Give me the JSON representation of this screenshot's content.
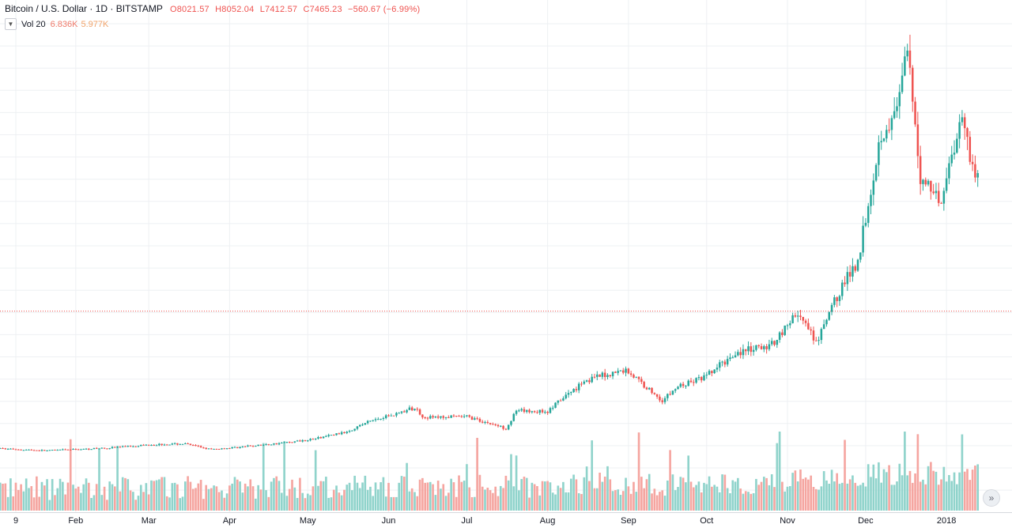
{
  "legend": {
    "symbol": "Bitcoin / U.S. Dollar · 1D · BITSTAMP",
    "open": "O8021.57",
    "high": "H8052.04",
    "low": "L7412.57",
    "close": "C7465.23",
    "change": "−560.67 (−6.99%)"
  },
  "volume_legend": {
    "toggle_icon": "chevron-down-icon",
    "label": "Vol 20",
    "value1": "6.836K",
    "value2": "5.977K"
  },
  "scroll_icon": "double-chevron-right-icon",
  "colors": {
    "up": "#26a69a",
    "down": "#ef5350",
    "vol_up": "#8fd3cb",
    "vol_down": "#f5a5a0",
    "last_price_line": "#ef5350"
  },
  "chart_data": {
    "type": "candlestick",
    "x_range": [
      "2017-01-09",
      "2018-01-14"
    ],
    "ylim": [
      -2000,
      21000
    ],
    "volume_ylim": [
      0,
      100000
    ],
    "last_price": 7465.23,
    "grid": true,
    "x_ticks": [
      {
        "label": "9",
        "date": "2017-01-09"
      },
      {
        "label": "Feb",
        "date": "2017-02-01"
      },
      {
        "label": "Mar",
        "date": "2017-03-01"
      },
      {
        "label": "Apr",
        "date": "2017-04-01"
      },
      {
        "label": "May",
        "date": "2017-05-01"
      },
      {
        "label": "Jun",
        "date": "2017-06-01"
      },
      {
        "label": "Jul",
        "date": "2017-07-01"
      },
      {
        "label": "Aug",
        "date": "2017-08-01"
      },
      {
        "label": "Sep",
        "date": "2017-09-01"
      },
      {
        "label": "Oct",
        "date": "2017-10-01"
      },
      {
        "label": "Nov",
        "date": "2017-11-01"
      },
      {
        "label": "Dec",
        "date": "2017-12-01"
      },
      {
        "label": "2018",
        "date": "2018-01-01"
      }
    ],
    "price_path": [
      {
        "date": "2017-01-03",
        "close": 1000
      },
      {
        "date": "2017-01-20",
        "close": 900
      },
      {
        "date": "2017-02-10",
        "close": 1000
      },
      {
        "date": "2017-03-01",
        "close": 1180
      },
      {
        "date": "2017-03-15",
        "close": 1220
      },
      {
        "date": "2017-03-25",
        "close": 950
      },
      {
        "date": "2017-04-15",
        "close": 1180
      },
      {
        "date": "2017-05-01",
        "close": 1400
      },
      {
        "date": "2017-05-15",
        "close": 1750
      },
      {
        "date": "2017-05-25",
        "close": 2300
      },
      {
        "date": "2017-06-11",
        "close": 2900
      },
      {
        "date": "2017-06-15",
        "close": 2450
      },
      {
        "date": "2017-07-01",
        "close": 2500
      },
      {
        "date": "2017-07-16",
        "close": 1950
      },
      {
        "date": "2017-07-20",
        "close": 2750
      },
      {
        "date": "2017-08-01",
        "close": 2750
      },
      {
        "date": "2017-08-15",
        "close": 4200
      },
      {
        "date": "2017-08-31",
        "close": 4700
      },
      {
        "date": "2017-09-14",
        "close": 3250
      },
      {
        "date": "2017-09-20",
        "close": 3900
      },
      {
        "date": "2017-10-01",
        "close": 4400
      },
      {
        "date": "2017-10-12",
        "close": 5500
      },
      {
        "date": "2017-10-25",
        "close": 5800
      },
      {
        "date": "2017-11-05",
        "close": 7400
      },
      {
        "date": "2017-11-12",
        "close": 5900
      },
      {
        "date": "2017-11-20",
        "close": 8200
      },
      {
        "date": "2017-11-28",
        "close": 9900
      },
      {
        "date": "2017-12-07",
        "close": 16000
      },
      {
        "date": "2017-12-12",
        "close": 16500
      },
      {
        "date": "2017-12-17",
        "close": 19500
      },
      {
        "date": "2017-12-22",
        "close": 13800
      },
      {
        "date": "2017-12-30",
        "close": 12800
      },
      {
        "date": "2018-01-07",
        "close": 16800
      },
      {
        "date": "2018-01-10",
        "close": 14800
      },
      {
        "date": "2018-01-12",
        "close": 13900
      }
    ]
  }
}
